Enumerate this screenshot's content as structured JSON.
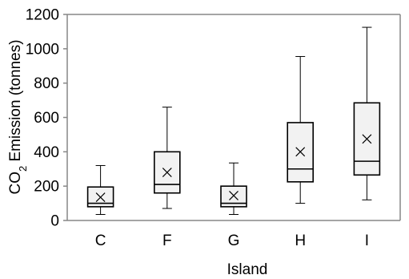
{
  "chart_data": {
    "type": "box",
    "xlabel": "Island",
    "ylabel_parts": {
      "prefix": "CO",
      "subscript": "2",
      "suffix": " Emission (tonnes)"
    },
    "ylim": [
      0,
      1200
    ],
    "yticks": [
      0,
      200,
      400,
      600,
      800,
      1000,
      1200
    ],
    "grid": false,
    "categories": [
      "C",
      "F",
      "G",
      "H",
      "I"
    ],
    "boxes": [
      {
        "category": "C",
        "min": 35,
        "q1": 80,
        "median": 100,
        "q3": 195,
        "max": 320,
        "mean": 135
      },
      {
        "category": "F",
        "min": 70,
        "q1": 160,
        "median": 210,
        "q3": 400,
        "max": 660,
        "mean": 280
      },
      {
        "category": "G",
        "min": 35,
        "q1": 80,
        "median": 100,
        "q3": 200,
        "max": 335,
        "mean": 145
      },
      {
        "category": "H",
        "min": 100,
        "q1": 225,
        "median": 300,
        "q3": 570,
        "max": 955,
        "mean": 400
      },
      {
        "category": "I",
        "min": 120,
        "q1": 265,
        "median": 345,
        "q3": 685,
        "max": 1125,
        "mean": 475
      }
    ],
    "colors": {
      "box_fill": "#f2f2f2",
      "stroke": "#000000",
      "axis": "#878787"
    }
  }
}
